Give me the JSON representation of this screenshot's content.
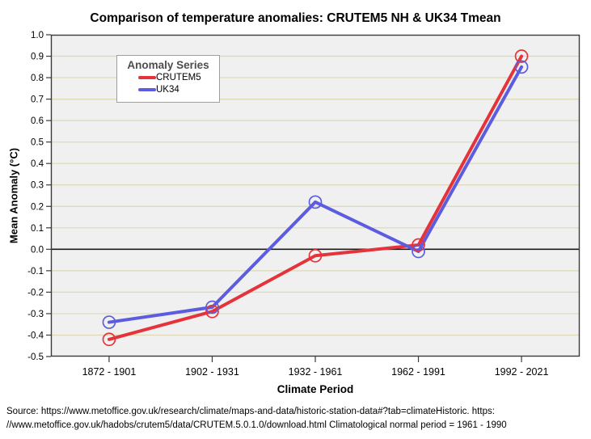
{
  "chart_data": {
    "type": "line",
    "title": "Comparison of temperature anomalies: CRUTEM5 NH & UK34 Tmean",
    "xlabel": "Climate Period",
    "ylabel": "Mean Anomaly (°C)",
    "categories": [
      "1872 - 1901",
      "1902 - 1931",
      "1932 - 1961",
      "1962 - 1991",
      "1992 - 2021"
    ],
    "series": [
      {
        "name": "CRUTEM5",
        "color": "#e5333b",
        "values": [
          -0.42,
          -0.29,
          -0.03,
          0.02,
          0.9
        ]
      },
      {
        "name": "UK34",
        "color": "#5c5ce0",
        "values": [
          -0.34,
          -0.27,
          0.22,
          -0.01,
          0.85
        ]
      }
    ],
    "legend_title": "Anomaly Series",
    "legend_position": "top-left-inside",
    "ylim": [
      -0.5,
      1.0
    ],
    "yticks": [
      "1.0",
      "0.9",
      "0.8",
      "0.7",
      "0.6",
      "0.5",
      "0.4",
      "0.3",
      "0.2",
      "0.1",
      "0.0",
      "-0.1",
      "-0.2",
      "-0.3",
      "-0.4",
      "-0.5"
    ],
    "zero_line": true,
    "grid": "horizontal",
    "marker": "open-circle",
    "plot_bg_color": "#f0f0f0",
    "grid_color": "#dcd9b4",
    "frame_color": "#3a3a3a",
    "zero_line_color": "#1c1c1c"
  },
  "source": {
    "line1": "Source: https://www.metoffice.gov.uk/research/climate/maps-and-data/historic-station-data#?tab=climateHistoric. https:",
    "line2": "//www.metoffice.gov.uk/hadobs/crutem5/data/CRUTEM.5.0.1.0/download.html Climatological normal period = 1961 - 1990"
  }
}
